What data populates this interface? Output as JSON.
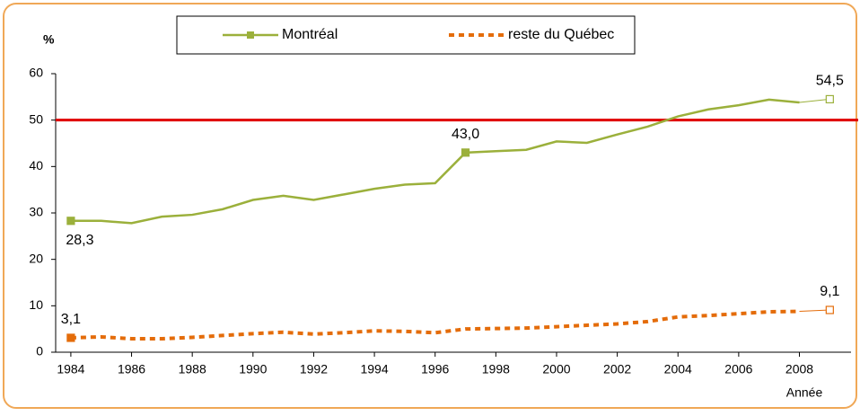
{
  "chart_data": {
    "type": "line",
    "y_label": "%",
    "x_label": "Année",
    "x": [
      1984,
      1985,
      1986,
      1987,
      1988,
      1989,
      1990,
      1991,
      1992,
      1993,
      1994,
      1995,
      1996,
      1997,
      1998,
      1999,
      2000,
      2001,
      2002,
      2003,
      2004,
      2005,
      2006,
      2007,
      2008,
      2009
    ],
    "series": [
      {
        "name": "Montréal",
        "color": "#9bb03b",
        "dash": false,
        "values": [
          28.3,
          28.3,
          27.8,
          29.2,
          29.6,
          30.8,
          32.8,
          33.7,
          32.8,
          34.0,
          35.2,
          36.1,
          36.4,
          43.0,
          43.3,
          43.6,
          45.4,
          45.1,
          46.9,
          48.6,
          50.8,
          52.3,
          53.2,
          54.4,
          53.8,
          54.5
        ],
        "value_labels": [
          "28,3",
          null,
          null,
          null,
          null,
          null,
          null,
          null,
          null,
          null,
          null,
          null,
          null,
          "43,0",
          null,
          null,
          null,
          null,
          null,
          null,
          null,
          null,
          null,
          null,
          null,
          "54,5"
        ]
      },
      {
        "name": "reste du Québec",
        "color": "#e46c0a",
        "dash": true,
        "values": [
          3.1,
          3.3,
          2.9,
          2.9,
          3.2,
          3.6,
          4.0,
          4.3,
          3.9,
          4.2,
          4.6,
          4.5,
          4.2,
          5.0,
          5.1,
          5.2,
          5.5,
          5.8,
          6.1,
          6.6,
          7.6,
          7.9,
          8.3,
          8.7,
          8.8,
          9.1
        ],
        "value_labels": [
          "3,1",
          null,
          null,
          null,
          null,
          null,
          null,
          null,
          null,
          null,
          null,
          null,
          null,
          null,
          null,
          null,
          null,
          null,
          null,
          null,
          null,
          null,
          null,
          null,
          null,
          "9,1"
        ]
      }
    ],
    "reference_line": {
      "value": 50,
      "color": "#e00000"
    },
    "xlim": [
      1983.5,
      2009.7
    ],
    "xticks": [
      1984,
      1986,
      1988,
      1990,
      1992,
      1994,
      1996,
      1998,
      2000,
      2002,
      2004,
      2006,
      2008
    ],
    "ylim": [
      0,
      60
    ],
    "yticks": [
      0,
      10,
      20,
      30,
      40,
      50,
      60
    ]
  }
}
